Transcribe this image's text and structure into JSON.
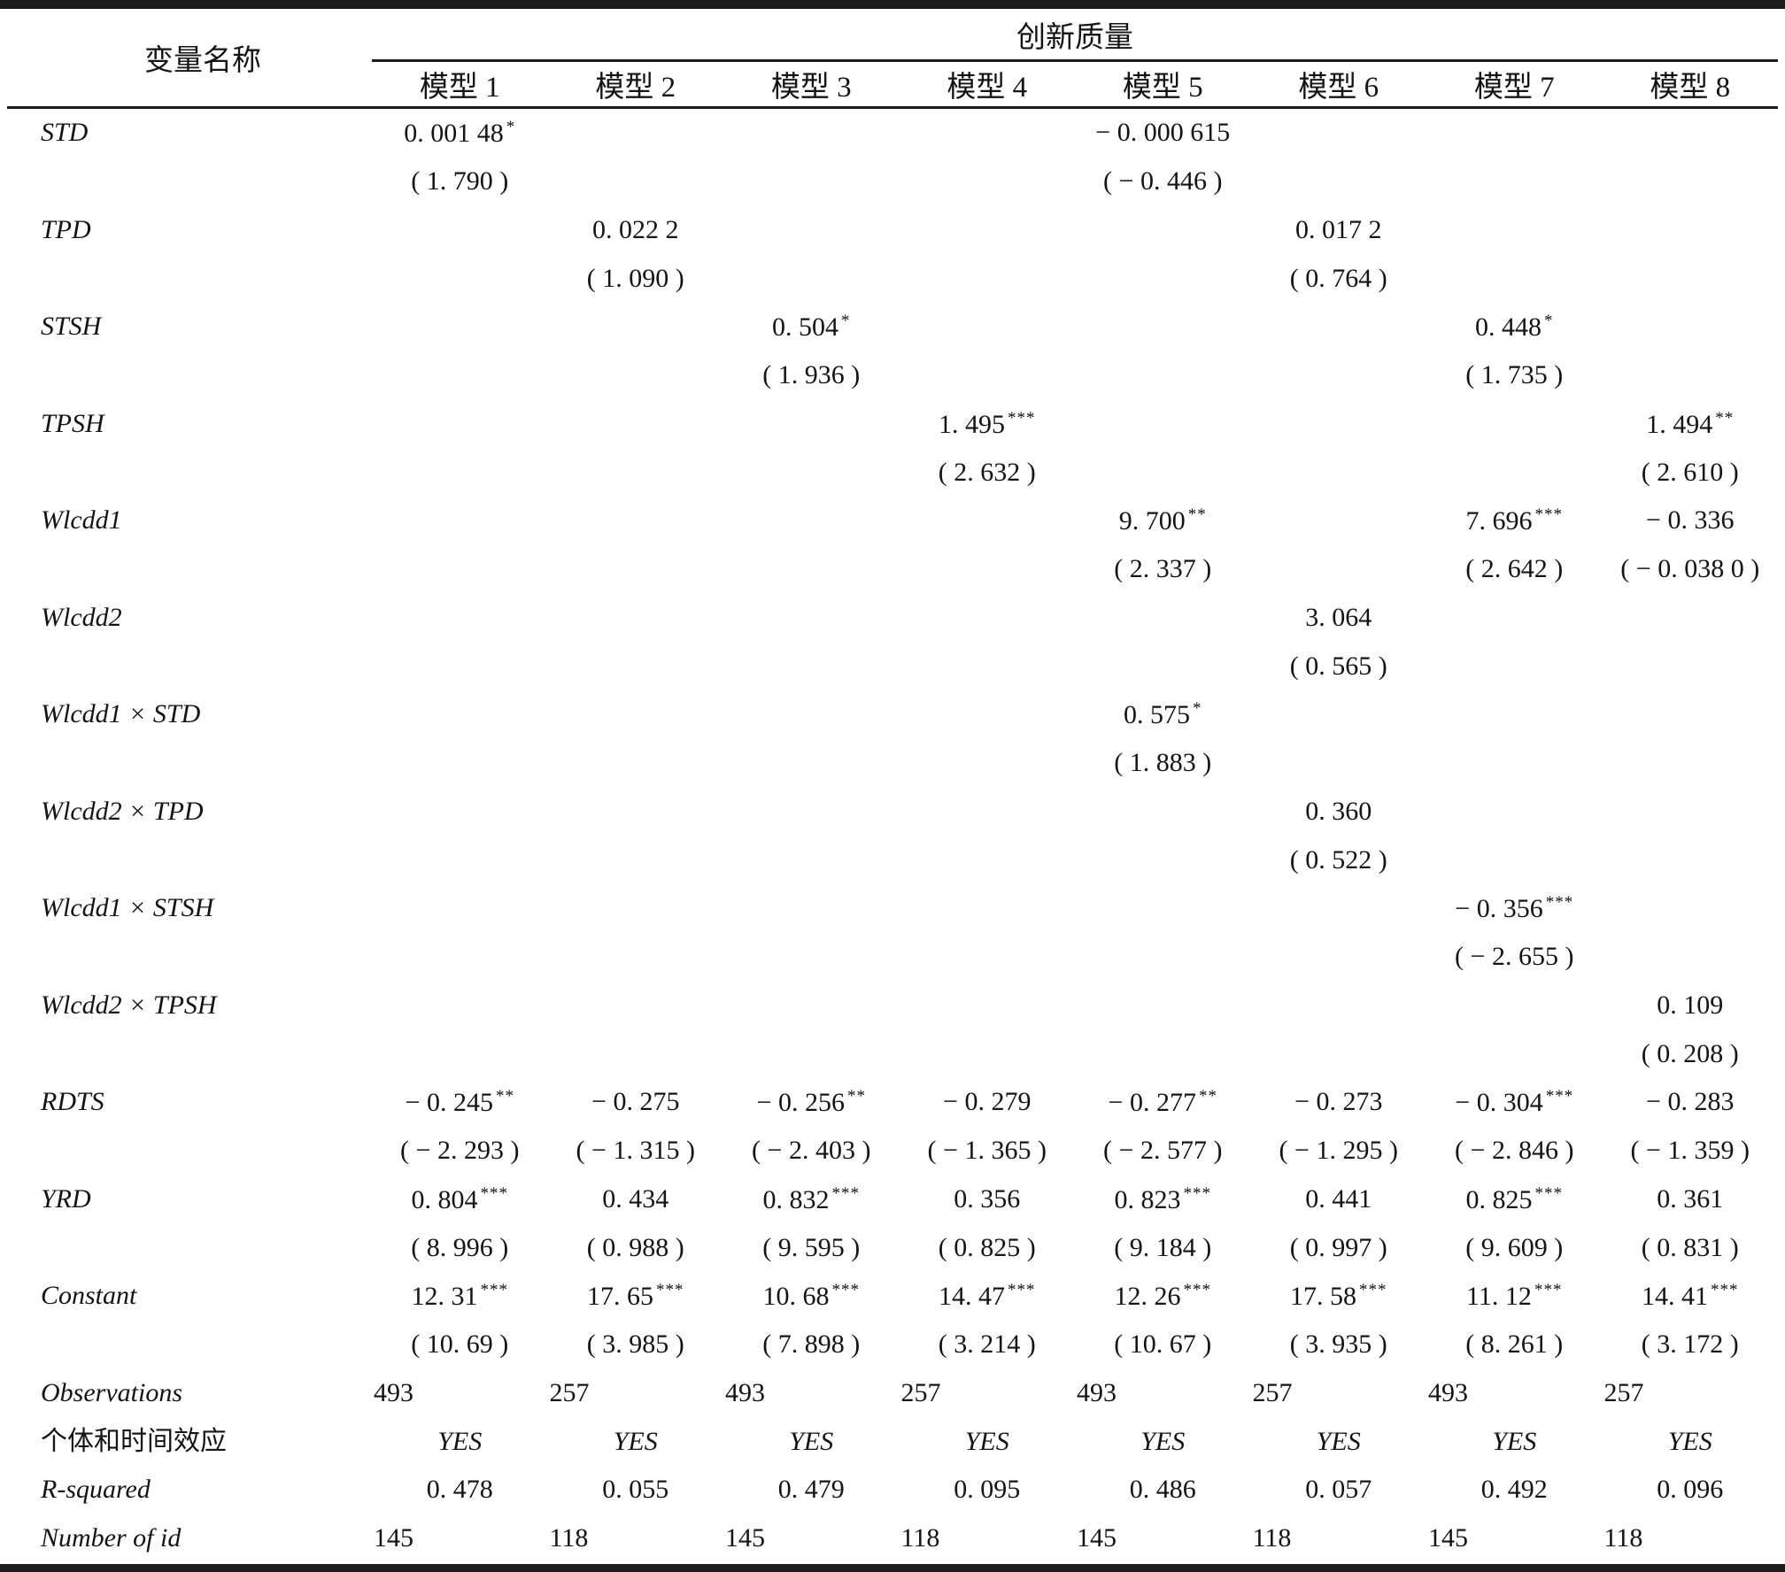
{
  "table": {
    "var_header": "变量名称",
    "group_header": "创新质量",
    "model_headers": [
      "模型 1",
      "模型 2",
      "模型 3",
      "模型 4",
      "模型 5",
      "模型 6",
      "模型 7",
      "模型 8"
    ],
    "coef_rows": [
      {
        "label": "STD",
        "cells": [
          {
            "col": 1,
            "v": "0. 001 48",
            "s": "*",
            "t": "( 1. 790 )"
          },
          {
            "col": 5,
            "v": "− 0. 000 615",
            "s": "",
            "t": "( − 0. 446 )"
          }
        ]
      },
      {
        "label": "TPD",
        "cells": [
          {
            "col": 2,
            "v": "0. 022 2",
            "s": "",
            "t": "( 1. 090 )"
          },
          {
            "col": 6,
            "v": "0. 017 2",
            "s": "",
            "t": "( 0. 764 )"
          }
        ]
      },
      {
        "label": "STSH",
        "cells": [
          {
            "col": 3,
            "v": "0. 504",
            "s": "*",
            "t": "( 1. 936 )"
          },
          {
            "col": 7,
            "v": "0. 448",
            "s": "*",
            "t": "( 1. 735 )"
          }
        ]
      },
      {
        "label": "TPSH",
        "cells": [
          {
            "col": 4,
            "v": "1. 495",
            "s": "***",
            "t": "( 2. 632 )"
          },
          {
            "col": 8,
            "v": "1. 494",
            "s": "**",
            "t": "( 2. 610 )"
          }
        ]
      },
      {
        "label": "Wlcdd1",
        "cells": [
          {
            "col": 5,
            "v": "9. 700",
            "s": "**",
            "t": "( 2. 337 )"
          },
          {
            "col": 7,
            "v": "7. 696",
            "s": "***",
            "t": "( 2. 642 )"
          },
          {
            "col": 8,
            "v": "− 0. 336",
            "s": "",
            "t": "( − 0. 038 0 )"
          }
        ]
      },
      {
        "label": "Wlcdd2",
        "cells": [
          {
            "col": 6,
            "v": "3. 064",
            "s": "",
            "t": "( 0. 565 )"
          }
        ]
      },
      {
        "label": "Wlcdd1 × STD",
        "cells": [
          {
            "col": 5,
            "v": "0. 575",
            "s": "*",
            "t": "( 1. 883 )"
          }
        ]
      },
      {
        "label": "Wlcdd2 × TPD",
        "cells": [
          {
            "col": 6,
            "v": "0. 360",
            "s": "",
            "t": "( 0. 522 )"
          }
        ]
      },
      {
        "label": "Wlcdd1 × STSH",
        "cells": [
          {
            "col": 7,
            "v": "− 0. 356",
            "s": "***",
            "t": "( − 2. 655 )"
          }
        ]
      },
      {
        "label": "Wlcdd2 × TPSH",
        "cells": [
          {
            "col": 8,
            "v": "0. 109",
            "s": "",
            "t": "( 0. 208 )"
          }
        ]
      },
      {
        "label": "RDTS",
        "cells": [
          {
            "col": 1,
            "v": "− 0. 245",
            "s": "**",
            "t": "( − 2. 293 )"
          },
          {
            "col": 2,
            "v": "− 0. 275",
            "s": "",
            "t": "( − 1. 315 )"
          },
          {
            "col": 3,
            "v": "− 0. 256",
            "s": "**",
            "t": "( − 2. 403 )"
          },
          {
            "col": 4,
            "v": "− 0. 279",
            "s": "",
            "t": "( − 1. 365 )"
          },
          {
            "col": 5,
            "v": "− 0. 277",
            "s": "**",
            "t": "( − 2. 577 )"
          },
          {
            "col": 6,
            "v": "− 0. 273",
            "s": "",
            "t": "( − 1. 295 )"
          },
          {
            "col": 7,
            "v": "− 0. 304",
            "s": "***",
            "t": "( − 2. 846 )"
          },
          {
            "col": 8,
            "v": "− 0. 283",
            "s": "",
            "t": "( − 1. 359 )"
          }
        ]
      },
      {
        "label": "YRD",
        "cells": [
          {
            "col": 1,
            "v": "0. 804",
            "s": "***",
            "t": "( 8. 996 )"
          },
          {
            "col": 2,
            "v": "0. 434",
            "s": "",
            "t": "( 0. 988 )"
          },
          {
            "col": 3,
            "v": "0. 832",
            "s": "***",
            "t": "( 9. 595 )"
          },
          {
            "col": 4,
            "v": "0. 356",
            "s": "",
            "t": "( 0. 825 )"
          },
          {
            "col": 5,
            "v": "0. 823",
            "s": "***",
            "t": "( 9. 184 )"
          },
          {
            "col": 6,
            "v": "0. 441",
            "s": "",
            "t": "( 0. 997 )"
          },
          {
            "col": 7,
            "v": "0. 825",
            "s": "***",
            "t": "( 9. 609 )"
          },
          {
            "col": 8,
            "v": "0. 361",
            "s": "",
            "t": "( 0. 831 )"
          }
        ]
      },
      {
        "label": "Constant",
        "cells": [
          {
            "col": 1,
            "v": "12. 31",
            "s": "***",
            "t": "( 10. 69 )"
          },
          {
            "col": 2,
            "v": "17. 65",
            "s": "***",
            "t": "( 3. 985 )"
          },
          {
            "col": 3,
            "v": "10. 68",
            "s": "***",
            "t": "( 7. 898 )"
          },
          {
            "col": 4,
            "v": "14. 47",
            "s": "***",
            "t": "( 3. 214 )"
          },
          {
            "col": 5,
            "v": "12. 26",
            "s": "***",
            "t": "( 10. 67 )"
          },
          {
            "col": 6,
            "v": "17. 58",
            "s": "***",
            "t": "( 3. 935 )"
          },
          {
            "col": 7,
            "v": "11. 12",
            "s": "***",
            "t": "( 8. 261 )"
          },
          {
            "col": 8,
            "v": "14. 41",
            "s": "***",
            "t": "( 3. 172 )"
          }
        ]
      }
    ],
    "stat_rows": [
      {
        "label": "Observations",
        "cjk_label": false,
        "align": "left",
        "italic_values": false,
        "values": [
          "493",
          "257",
          "493",
          "257",
          "493",
          "257",
          "493",
          "257"
        ]
      },
      {
        "label": "个体和时间效应",
        "cjk_label": true,
        "align": "center",
        "italic_values": true,
        "values": [
          "YES",
          "YES",
          "YES",
          "YES",
          "YES",
          "YES",
          "YES",
          "YES"
        ]
      },
      {
        "label": "R-squared",
        "cjk_label": false,
        "align": "center",
        "italic_values": false,
        "values": [
          "0. 478",
          "0. 055",
          "0. 479",
          "0. 095",
          "0. 486",
          "0. 057",
          "0. 492",
          "0. 096"
        ]
      },
      {
        "label": "Number of id",
        "cjk_label": false,
        "align": "left",
        "italic_values": false,
        "values": [
          "145",
          "118",
          "145",
          "118",
          "145",
          "118",
          "145",
          "118"
        ]
      }
    ]
  }
}
